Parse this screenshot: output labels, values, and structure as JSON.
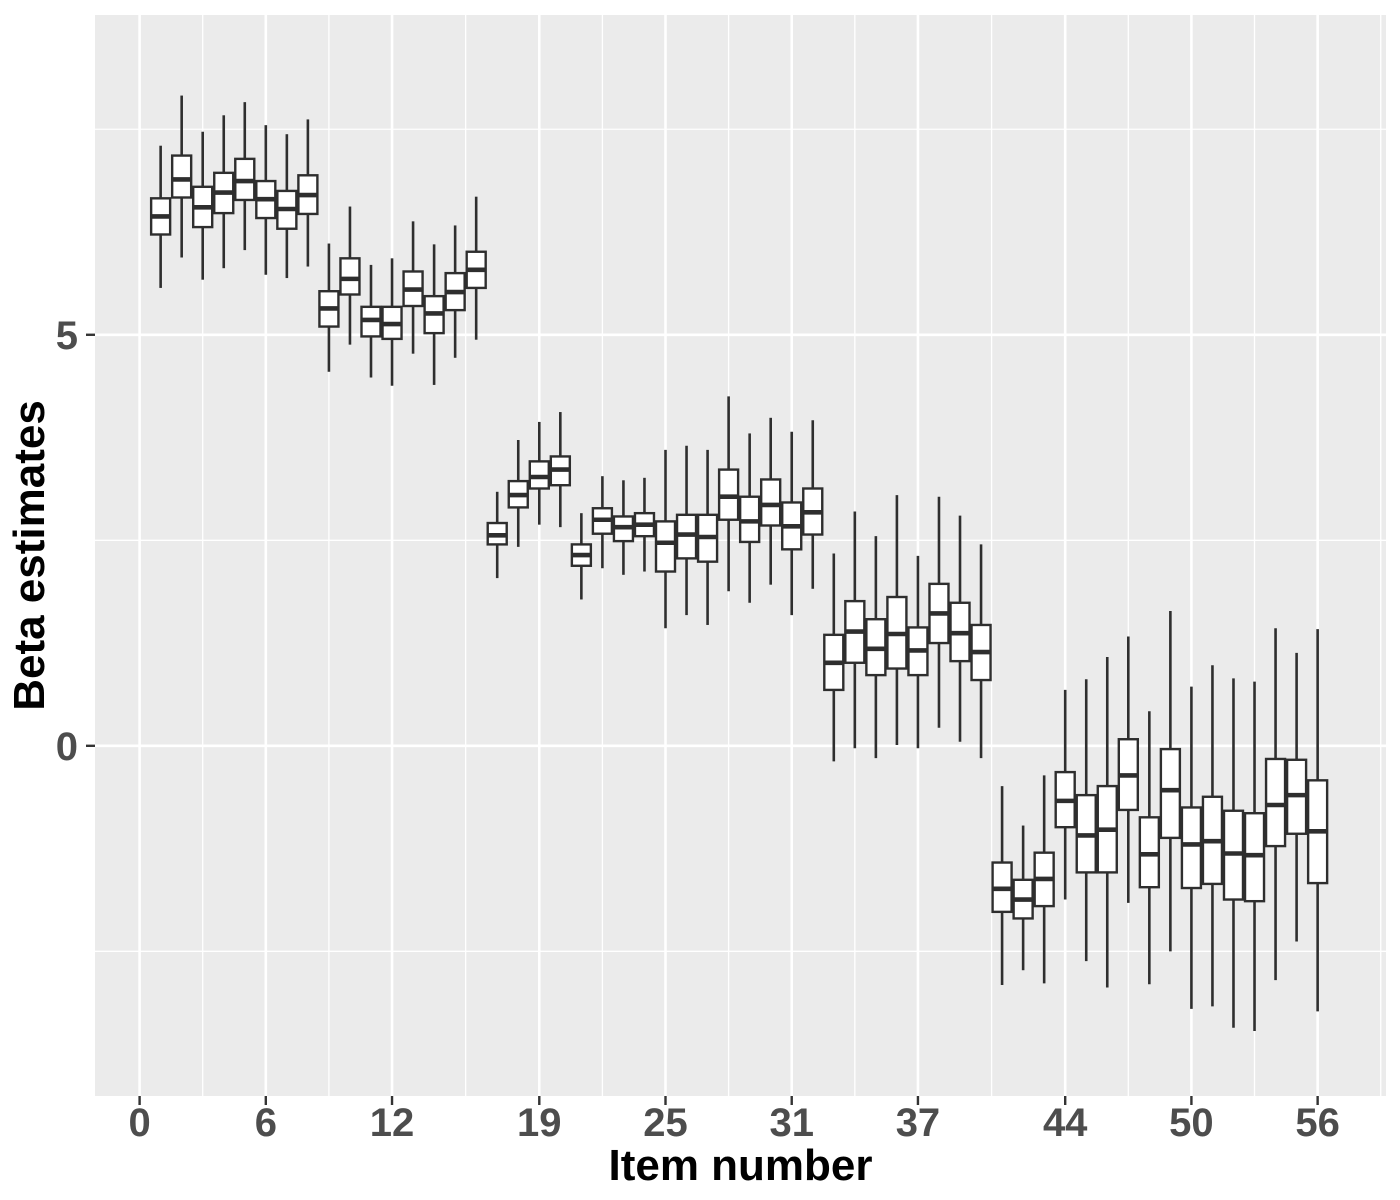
{
  "figure": {
    "background": "#FFFFFF"
  },
  "chart_data": {
    "type": "boxplot",
    "title": "",
    "xlabel": "Item number",
    "ylabel": "Beta estimates",
    "legend": false,
    "grid": true,
    "x_major_ticks": [
      0,
      6,
      12,
      19,
      25,
      31,
      37,
      44,
      50,
      56
    ],
    "x_minor_ticks": [
      3,
      9,
      15.5,
      22,
      28,
      34,
      40.5,
      47,
      53,
      59
    ],
    "y_major_ticks": [
      0,
      5
    ],
    "y_minor_ticks": [
      -2.5,
      2.5,
      7.5
    ],
    "x_tick_labels": [
      "0",
      "6",
      "12",
      "19",
      "25",
      "31",
      "37",
      "44",
      "50",
      "56"
    ],
    "y_tick_labels": [
      "0",
      "5"
    ],
    "xlim": [
      -2.12,
      59.25
    ],
    "ylim": [
      -4.26,
      8.89
    ],
    "colors": {
      "panel_bg": "#EBEBEB",
      "grid": "#FFFFFF",
      "box_fill": "#FFFFFF",
      "box_stroke": "#2E2E2E",
      "tick_mark": "#333333",
      "axis_text": "#4D4D4D",
      "axis_title": "#000000"
    },
    "boxes": [
      {
        "item": 1,
        "low": 5.57,
        "q1": 6.22,
        "median": 6.44,
        "q3": 6.66,
        "high": 7.3
      },
      {
        "item": 2,
        "low": 5.94,
        "q1": 6.67,
        "median": 6.89,
        "q3": 7.18,
        "high": 7.91
      },
      {
        "item": 3,
        "low": 5.67,
        "q1": 6.31,
        "median": 6.55,
        "q3": 6.8,
        "high": 7.47
      },
      {
        "item": 4,
        "low": 5.81,
        "q1": 6.48,
        "median": 6.73,
        "q3": 6.97,
        "high": 7.67
      },
      {
        "item": 5,
        "low": 6.03,
        "q1": 6.64,
        "median": 6.87,
        "q3": 7.14,
        "high": 7.83
      },
      {
        "item": 6,
        "low": 5.73,
        "q1": 6.42,
        "median": 6.65,
        "q3": 6.87,
        "high": 7.55
      },
      {
        "item": 7,
        "low": 5.69,
        "q1": 6.29,
        "median": 6.53,
        "q3": 6.75,
        "high": 7.44
      },
      {
        "item": 8,
        "low": 5.83,
        "q1": 6.47,
        "median": 6.7,
        "q3": 6.94,
        "high": 7.62
      },
      {
        "item": 9,
        "low": 4.55,
        "q1": 5.1,
        "median": 5.32,
        "q3": 5.53,
        "high": 6.11
      },
      {
        "item": 10,
        "low": 4.88,
        "q1": 5.49,
        "median": 5.68,
        "q3": 5.93,
        "high": 6.56
      },
      {
        "item": 11,
        "low": 4.48,
        "q1": 4.98,
        "median": 5.18,
        "q3": 5.34,
        "high": 5.85
      },
      {
        "item": 12,
        "low": 4.38,
        "q1": 4.95,
        "median": 5.13,
        "q3": 5.34,
        "high": 5.93
      },
      {
        "item": 13,
        "low": 4.77,
        "q1": 5.35,
        "median": 5.55,
        "q3": 5.77,
        "high": 6.38
      },
      {
        "item": 14,
        "low": 4.39,
        "q1": 5.02,
        "median": 5.26,
        "q3": 5.47,
        "high": 6.1
      },
      {
        "item": 15,
        "low": 4.72,
        "q1": 5.3,
        "median": 5.52,
        "q3": 5.75,
        "high": 6.33
      },
      {
        "item": 16,
        "low": 4.94,
        "q1": 5.57,
        "median": 5.79,
        "q3": 6.01,
        "high": 6.68
      },
      {
        "item": 17,
        "low": 2.04,
        "q1": 2.45,
        "median": 2.56,
        "q3": 2.71,
        "high": 3.09
      },
      {
        "item": 18,
        "low": 2.42,
        "q1": 2.9,
        "median": 3.05,
        "q3": 3.22,
        "high": 3.72
      },
      {
        "item": 19,
        "low": 2.69,
        "q1": 3.13,
        "median": 3.27,
        "q3": 3.46,
        "high": 3.94
      },
      {
        "item": 20,
        "low": 2.66,
        "q1": 3.17,
        "median": 3.36,
        "q3": 3.52,
        "high": 4.06
      },
      {
        "item": 21,
        "low": 1.78,
        "q1": 2.19,
        "median": 2.32,
        "q3": 2.45,
        "high": 2.83
      },
      {
        "item": 22,
        "low": 2.16,
        "q1": 2.58,
        "median": 2.75,
        "q3": 2.89,
        "high": 3.28
      },
      {
        "item": 23,
        "low": 2.08,
        "q1": 2.49,
        "median": 2.66,
        "q3": 2.79,
        "high": 3.23
      },
      {
        "item": 24,
        "low": 2.12,
        "q1": 2.55,
        "median": 2.69,
        "q3": 2.83,
        "high": 3.26
      },
      {
        "item": 25,
        "low": 1.43,
        "q1": 2.12,
        "median": 2.47,
        "q3": 2.73,
        "high": 3.6
      },
      {
        "item": 26,
        "low": 1.59,
        "q1": 2.28,
        "median": 2.57,
        "q3": 2.81,
        "high": 3.65
      },
      {
        "item": 27,
        "low": 1.47,
        "q1": 2.24,
        "median": 2.54,
        "q3": 2.81,
        "high": 3.6
      },
      {
        "item": 28,
        "low": 1.88,
        "q1": 2.75,
        "median": 3.03,
        "q3": 3.36,
        "high": 4.25
      },
      {
        "item": 29,
        "low": 1.74,
        "q1": 2.48,
        "median": 2.73,
        "q3": 3.03,
        "high": 3.8
      },
      {
        "item": 30,
        "low": 1.96,
        "q1": 2.68,
        "median": 2.93,
        "q3": 3.24,
        "high": 3.99
      },
      {
        "item": 31,
        "low": 1.59,
        "q1": 2.39,
        "median": 2.67,
        "q3": 2.96,
        "high": 3.82
      },
      {
        "item": 32,
        "low": 1.91,
        "q1": 2.57,
        "median": 2.84,
        "q3": 3.13,
        "high": 3.96
      },
      {
        "item": 33,
        "low": -0.19,
        "q1": 0.68,
        "median": 1.01,
        "q3": 1.35,
        "high": 2.34
      },
      {
        "item": 34,
        "low": -0.03,
        "q1": 1.01,
        "median": 1.39,
        "q3": 1.76,
        "high": 2.85
      },
      {
        "item": 35,
        "low": -0.15,
        "q1": 0.86,
        "median": 1.18,
        "q3": 1.54,
        "high": 2.55
      },
      {
        "item": 36,
        "low": 0.01,
        "q1": 0.94,
        "median": 1.36,
        "q3": 1.81,
        "high": 3.05
      },
      {
        "item": 37,
        "low": -0.03,
        "q1": 0.86,
        "median": 1.16,
        "q3": 1.44,
        "high": 2.31
      },
      {
        "item": 38,
        "low": 0.22,
        "q1": 1.25,
        "median": 1.61,
        "q3": 1.97,
        "high": 3.03
      },
      {
        "item": 39,
        "low": 0.05,
        "q1": 1.03,
        "median": 1.37,
        "q3": 1.74,
        "high": 2.8
      },
      {
        "item": 40,
        "low": -0.15,
        "q1": 0.8,
        "median": 1.14,
        "q3": 1.47,
        "high": 2.45
      },
      {
        "item": 41,
        "low": -2.91,
        "q1": -2.02,
        "median": -1.74,
        "q3": -1.42,
        "high": -0.49
      },
      {
        "item": 42,
        "low": -2.73,
        "q1": -2.1,
        "median": -1.87,
        "q3": -1.63,
        "high": -0.97
      },
      {
        "item": 43,
        "low": -2.89,
        "q1": -1.95,
        "median": -1.62,
        "q3": -1.3,
        "high": -0.36
      },
      {
        "item": 44,
        "low": -1.87,
        "q1": -0.99,
        "median": -0.67,
        "q3": -0.32,
        "high": 0.68
      },
      {
        "item": 45,
        "low": -2.62,
        "q1": -1.54,
        "median": -1.09,
        "q3": -0.6,
        "high": 0.81
      },
      {
        "item": 46,
        "low": -2.94,
        "q1": -1.54,
        "median": -1.02,
        "q3": -0.49,
        "high": 1.08
      },
      {
        "item": 47,
        "low": -1.91,
        "q1": -0.78,
        "median": -0.36,
        "q3": 0.08,
        "high": 1.33
      },
      {
        "item": 48,
        "low": -2.9,
        "q1": -1.72,
        "median": -1.32,
        "q3": -0.87,
        "high": 0.42
      },
      {
        "item": 49,
        "low": -2.5,
        "q1": -1.12,
        "median": -0.54,
        "q3": -0.04,
        "high": 1.64
      },
      {
        "item": 50,
        "low": -3.2,
        "q1": -1.73,
        "median": -1.2,
        "q3": -0.75,
        "high": 0.72
      },
      {
        "item": 51,
        "low": -3.17,
        "q1": -1.68,
        "median": -1.16,
        "q3": -0.62,
        "high": 0.98
      },
      {
        "item": 52,
        "low": -3.43,
        "q1": -1.87,
        "median": -1.31,
        "q3": -0.79,
        "high": 0.82
      },
      {
        "item": 53,
        "low": -3.47,
        "q1": -1.89,
        "median": -1.33,
        "q3": -0.82,
        "high": 0.78
      },
      {
        "item": 54,
        "low": -2.85,
        "q1": -1.22,
        "median": -0.72,
        "q3": -0.16,
        "high": 1.43
      },
      {
        "item": 55,
        "low": -2.38,
        "q1": -1.07,
        "median": -0.6,
        "q3": -0.17,
        "high": 1.13
      },
      {
        "item": 56,
        "low": -3.23,
        "q1": -1.67,
        "median": -1.04,
        "q3": -0.42,
        "high": 1.42
      }
    ]
  }
}
